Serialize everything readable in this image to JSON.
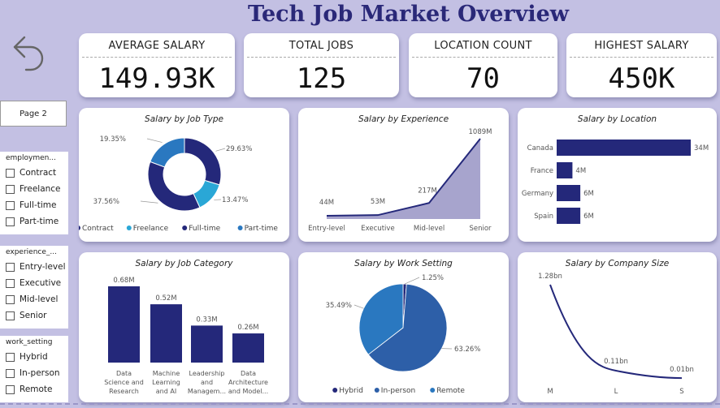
{
  "title": "Tech Job Market Overview",
  "page_button": "Page 2",
  "kpis": [
    {
      "label": "AVERAGE SALARY",
      "value": "149.93K"
    },
    {
      "label": "TOTAL JOBS",
      "value": "125"
    },
    {
      "label": "LOCATION COUNT",
      "value": "70"
    },
    {
      "label": "HIGHEST SALARY",
      "value": "450K"
    }
  ],
  "slicers": [
    {
      "title": "employmen...",
      "options": [
        "Contract",
        "Freelance",
        "Full-time",
        "Part-time"
      ]
    },
    {
      "title": "experience_...",
      "options": [
        "Entry-level",
        "Executive",
        "Mid-level",
        "Senior"
      ]
    },
    {
      "title": "work_setting",
      "options": [
        "Hybrid",
        "In-person",
        "Remote"
      ]
    }
  ],
  "colors": {
    "navy": "#24287a",
    "blue": "#2d5fa8",
    "light_blue": "#2aa7d6",
    "mid_blue": "#2a78c0",
    "area": "#a7a4cd",
    "background": "#c3c0e3"
  },
  "chart_data": [
    {
      "type": "pie",
      "title": "Salary by Job Type",
      "donut": true,
      "categories": [
        "Contract",
        "Freelance",
        "Full-time",
        "Part-time"
      ],
      "values": [
        29.63,
        13.47,
        37.56,
        19.35
      ],
      "labels": [
        "29.63%",
        "13.47%",
        "37.56%",
        "19.35%"
      ],
      "legend": "bottom"
    },
    {
      "type": "area",
      "title": "Salary by Experience",
      "categories": [
        "Entry-level",
        "Executive",
        "Mid-level",
        "Senior"
      ],
      "values": [
        44,
        53,
        217,
        1089
      ],
      "labels": [
        "44M",
        "53M",
        "217M",
        "1089M"
      ]
    },
    {
      "type": "bar",
      "orientation": "horizontal",
      "title": "Salary by Location",
      "categories": [
        "Canada",
        "France",
        "Germany",
        "Spain"
      ],
      "values": [
        34,
        4,
        6,
        6
      ],
      "labels": [
        "34M",
        "4M",
        "6M",
        "6M"
      ]
    },
    {
      "type": "bar",
      "title": "Salary by Job Category",
      "categories": [
        [
          "Data",
          "Science and",
          "Research"
        ],
        [
          "Machine",
          "Learning",
          "and AI"
        ],
        [
          "Leadership",
          "and",
          "Managem..."
        ],
        [
          "Data",
          "Architecture",
          "and Model..."
        ]
      ],
      "values": [
        0.68,
        0.52,
        0.33,
        0.26
      ],
      "labels": [
        "0.68M",
        "0.52M",
        "0.33M",
        "0.26M"
      ]
    },
    {
      "type": "pie",
      "title": "Salary by Work Setting",
      "categories": [
        "Hybrid",
        "In-person",
        "Remote"
      ],
      "values": [
        1.25,
        63.26,
        35.49
      ],
      "labels": [
        "1.25%",
        "63.26%",
        "35.49%"
      ],
      "legend": "bottom"
    },
    {
      "type": "line",
      "title": "Salary by Company Size",
      "categories": [
        "M",
        "L",
        "S"
      ],
      "values": [
        1.28,
        0.11,
        0.01
      ],
      "labels": [
        "1.28bn",
        "0.11bn",
        "0.01bn"
      ]
    }
  ]
}
